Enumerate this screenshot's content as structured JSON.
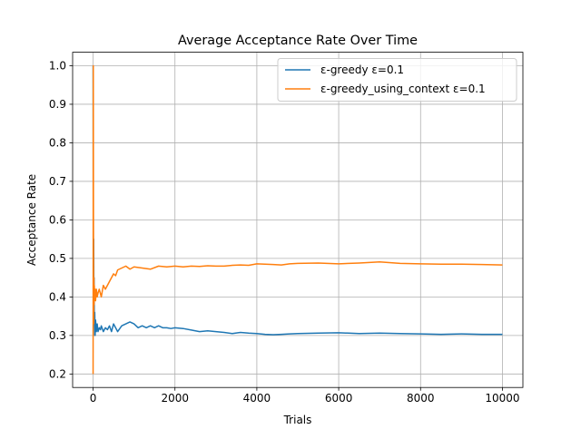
{
  "chart_data": {
    "type": "line",
    "title": "Average Acceptance Rate Over Time",
    "xlabel": "Trials",
    "ylabel": "Acceptance Rate",
    "xlim": [
      -500,
      10500
    ],
    "ylim": [
      0.165,
      1.035
    ],
    "grid": true,
    "legend_position": "top-right",
    "x_ticks": [
      0,
      2000,
      4000,
      6000,
      8000,
      10000
    ],
    "y_ticks": [
      0.2,
      0.3,
      0.4,
      0.5,
      0.6,
      0.7,
      0.8,
      0.9,
      1.0
    ],
    "x_tick_labels": [
      "0",
      "2000",
      "4000",
      "6000",
      "8000",
      "10000"
    ],
    "y_tick_labels": [
      "0.2",
      "0.3",
      "0.4",
      "0.5",
      "0.6",
      "0.7",
      "0.8",
      "0.9",
      "1.0"
    ],
    "series": [
      {
        "name": "ε-greedy ε=0.1",
        "color": "#1f77b4",
        "x": [
          0,
          5,
          10,
          15,
          20,
          25,
          30,
          40,
          50,
          60,
          80,
          100,
          120,
          150,
          180,
          200,
          250,
          300,
          350,
          400,
          450,
          500,
          550,
          600,
          700,
          800,
          900,
          1000,
          1100,
          1200,
          1300,
          1400,
          1500,
          1600,
          1700,
          1800,
          1900,
          2000,
          2200,
          2400,
          2600,
          2800,
          3000,
          3200,
          3400,
          3600,
          3800,
          4000,
          4200,
          4400,
          4600,
          4800,
          5000,
          5500,
          6000,
          6500,
          7000,
          7500,
          8000,
          8500,
          9000,
          9500,
          10000
        ],
        "y": [
          1.0,
          0.6,
          0.3,
          0.55,
          0.38,
          0.45,
          0.33,
          0.36,
          0.3,
          0.34,
          0.31,
          0.33,
          0.31,
          0.32,
          0.315,
          0.325,
          0.31,
          0.32,
          0.315,
          0.325,
          0.31,
          0.33,
          0.32,
          0.31,
          0.325,
          0.33,
          0.335,
          0.33,
          0.32,
          0.325,
          0.32,
          0.325,
          0.32,
          0.325,
          0.32,
          0.32,
          0.318,
          0.32,
          0.318,
          0.314,
          0.31,
          0.312,
          0.31,
          0.308,
          0.305,
          0.308,
          0.306,
          0.305,
          0.303,
          0.302,
          0.303,
          0.304,
          0.305,
          0.306,
          0.307,
          0.305,
          0.306,
          0.305,
          0.304,
          0.303,
          0.304,
          0.303,
          0.303
        ]
      },
      {
        "name": "ε-greedy_using_context ε=0.1",
        "color": "#ff7f0e",
        "x": [
          0,
          5,
          10,
          15,
          20,
          25,
          30,
          40,
          50,
          60,
          80,
          100,
          120,
          150,
          200,
          250,
          300,
          350,
          400,
          450,
          500,
          550,
          600,
          700,
          800,
          900,
          1000,
          1200,
          1400,
          1600,
          1800,
          2000,
          2200,
          2400,
          2600,
          2800,
          3000,
          3200,
          3400,
          3600,
          3800,
          4000,
          4200,
          4400,
          4600,
          4800,
          5000,
          5500,
          6000,
          6500,
          7000,
          7500,
          8000,
          8500,
          9000,
          9500,
          10000
        ],
        "y": [
          0.2,
          1.0,
          0.5,
          0.33,
          0.45,
          0.38,
          0.43,
          0.4,
          0.42,
          0.39,
          0.42,
          0.4,
          0.41,
          0.42,
          0.4,
          0.43,
          0.42,
          0.43,
          0.44,
          0.45,
          0.46,
          0.455,
          0.47,
          0.475,
          0.48,
          0.472,
          0.478,
          0.475,
          0.472,
          0.48,
          0.478,
          0.48,
          0.478,
          0.48,
          0.479,
          0.481,
          0.48,
          0.48,
          0.482,
          0.483,
          0.482,
          0.486,
          0.485,
          0.484,
          0.483,
          0.486,
          0.487,
          0.488,
          0.486,
          0.488,
          0.491,
          0.487,
          0.486,
          0.485,
          0.485,
          0.484,
          0.483
        ]
      }
    ]
  }
}
